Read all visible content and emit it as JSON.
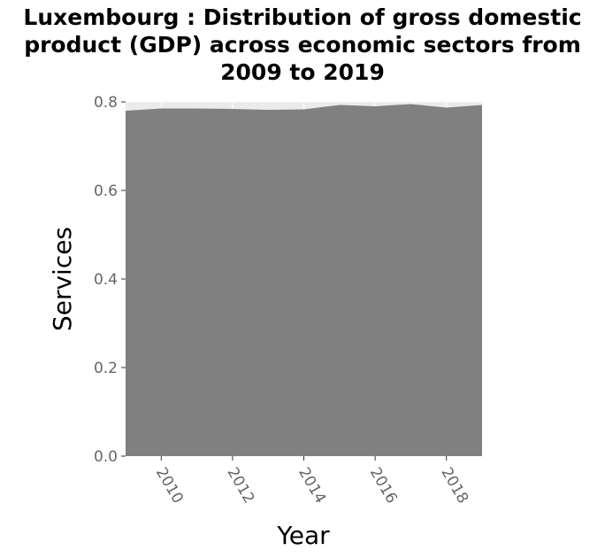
{
  "chart_data": {
    "type": "area",
    "title_lines": [
      "Luxembourg : Distribution of gross domestic",
      "product (GDP) across economic sectors from",
      "2009 to 2019"
    ],
    "xlabel": "Year",
    "ylabel": "Services",
    "x": [
      2009,
      2010,
      2011,
      2012,
      2013,
      2014,
      2015,
      2016,
      2017,
      2018,
      2019
    ],
    "series": [
      {
        "values": [
          0.78,
          0.785,
          0.785,
          0.784,
          0.782,
          0.783,
          0.793,
          0.79,
          0.795,
          0.787,
          0.793
        ]
      }
    ],
    "xlim": [
      2009,
      2019
    ],
    "ylim": [
      0,
      0.8
    ],
    "x_ticks": [
      "2010",
      "2012",
      "2014",
      "2016",
      "2018"
    ],
    "y_ticks": [
      "0.0",
      "0.2",
      "0.4",
      "0.6",
      "0.8"
    ],
    "grid": true,
    "colors": {
      "area": "#808080",
      "panel": "#ebebeb",
      "grid": "#ffffff",
      "text": "#666666"
    }
  }
}
